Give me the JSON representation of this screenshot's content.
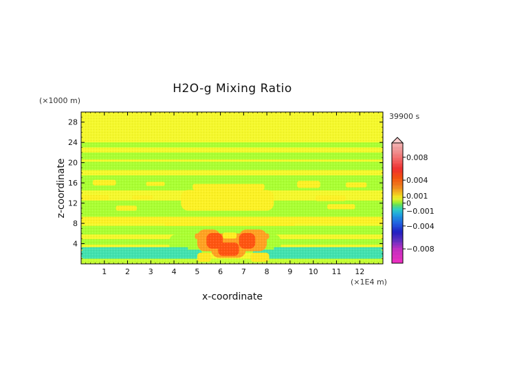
{
  "chart_data": {
    "type": "heatmap",
    "title": "H2O-g Mixing Ratio",
    "xlabel": "x-coordinate",
    "ylabel": "z-coordinate",
    "x_unit": "(×1E4 m)",
    "y_unit": "(×1000 m)",
    "time_label": "39900 s",
    "xlim": [
      0,
      13
    ],
    "ylim": [
      0,
      30
    ],
    "x_ticks": [
      1,
      2,
      3,
      4,
      5,
      6,
      7,
      8,
      9,
      10,
      11,
      12
    ],
    "y_ticks": [
      4,
      8,
      12,
      16,
      20,
      24,
      28
    ],
    "colorbar": {
      "range": [
        -0.0105,
        0.0105
      ],
      "tick_values": [
        0.008,
        0.004,
        0.001,
        0,
        -0.001,
        -0.004,
        -0.008
      ],
      "tick_labels": [
        "0.008",
        "0.004",
        "0.001",
        "0",
        "−0.001",
        "−0.004",
        "−0.008"
      ],
      "stops": [
        {
          "v": -0.0105,
          "color": "#ff33cc"
        },
        {
          "v": -0.008,
          "color": "#cc33cc"
        },
        {
          "v": -0.0065,
          "color": "#6633cc"
        },
        {
          "v": -0.005,
          "color": "#2222cc"
        },
        {
          "v": -0.0035,
          "color": "#2266ee"
        },
        {
          "v": -0.002,
          "color": "#22aaee"
        },
        {
          "v": -0.001,
          "color": "#33ddcc"
        },
        {
          "v": -0.0003,
          "color": "#66ee66"
        },
        {
          "v": 0.0002,
          "color": "#aaff33"
        },
        {
          "v": 0.0007,
          "color": "#eeff33"
        },
        {
          "v": 0.0012,
          "color": "#ffee22"
        },
        {
          "v": 0.002,
          "color": "#ffbb22"
        },
        {
          "v": 0.003,
          "color": "#ff8822"
        },
        {
          "v": 0.0045,
          "color": "#ff5511"
        },
        {
          "v": 0.006,
          "color": "#ff3333"
        },
        {
          "v": 0.0075,
          "color": "#ff6666"
        },
        {
          "v": 0.009,
          "color": "#ff9999"
        },
        {
          "v": 0.0105,
          "color": "#ffbbbb"
        }
      ]
    },
    "field_layers": [
      {
        "name": "background",
        "level": 0.0009,
        "rects": [
          [
            0,
            0,
            13,
            30
          ]
        ]
      },
      {
        "name": "green-band",
        "level": 0.0002,
        "rects": [
          [
            0,
            23,
            13,
            24
          ],
          [
            0,
            20.6,
            13,
            22
          ],
          [
            0,
            18.5,
            13,
            20.2
          ],
          [
            0,
            14.5,
            13,
            17.5
          ],
          [
            0,
            9.3,
            13,
            12.5
          ],
          [
            0,
            5.8,
            13,
            7.5
          ],
          [
            0,
            3.8,
            13,
            4.9
          ]
        ]
      },
      {
        "name": "thin-yellow",
        "level": 0.0009,
        "rects": [
          [
            0,
            20.2,
            13,
            20.6
          ],
          [
            0,
            17.5,
            13,
            18.5
          ]
        ]
      },
      {
        "name": "yellow-blobs",
        "level": 0.0011,
        "rects": [
          [
            0.5,
            15.5,
            1.5,
            16.6
          ],
          [
            2.8,
            15.4,
            3.6,
            16.2
          ],
          [
            4.8,
            14.6,
            7.9,
            15.8
          ],
          [
            9.3,
            15.0,
            10.3,
            16.4
          ],
          [
            11.4,
            15.1,
            12.3,
            16.1
          ],
          [
            0,
            12.6,
            1.2,
            13.6
          ],
          [
            2.2,
            12.8,
            3.1,
            13.5
          ],
          [
            4.3,
            10.5,
            8.3,
            14.6
          ],
          [
            10.1,
            12.4,
            11.4,
            13.5
          ],
          [
            1.5,
            10.5,
            2.4,
            11.5
          ],
          [
            10.6,
            10.8,
            11.8,
            11.8
          ],
          [
            0,
            8.0,
            13,
            9.3
          ],
          [
            3.6,
            7.5,
            9.2,
            8.0
          ]
        ]
      },
      {
        "name": "green-under-plume",
        "level": 0.0002,
        "rects": [
          [
            3.8,
            2.2,
            8.6,
            5.8
          ]
        ]
      },
      {
        "name": "cyan-layer",
        "level": -0.0008,
        "rects": [
          [
            0,
            1.0,
            5.2,
            2.8
          ],
          [
            7.4,
            1.0,
            13,
            2.8
          ],
          [
            0,
            2.8,
            4.6,
            3.3
          ],
          [
            8.3,
            2.8,
            13,
            3.3
          ]
        ]
      },
      {
        "name": "surface-band",
        "level": 0.0004,
        "rects": [
          [
            0,
            0,
            13,
            1.0
          ]
        ]
      },
      {
        "name": "plume-outer",
        "level": 0.0025,
        "rects": [
          [
            5.0,
            2.5,
            6.0,
            6.8
          ],
          [
            6.8,
            2.5,
            8.0,
            6.8
          ],
          [
            5.6,
            1.2,
            7.1,
            5.8
          ],
          [
            4.9,
            4.9,
            8.1,
            6.0
          ]
        ]
      },
      {
        "name": "plume-inner",
        "level": 0.0045,
        "rects": [
          [
            5.4,
            3.0,
            6.1,
            6.1
          ],
          [
            6.8,
            3.0,
            7.5,
            6.1
          ],
          [
            5.9,
            1.6,
            6.8,
            4.2
          ]
        ]
      },
      {
        "name": "plume-notch",
        "level": 0.0012,
        "rects": [
          [
            6.1,
            5.0,
            6.7,
            6.2
          ]
        ]
      },
      {
        "name": "plume-bottom",
        "level": 0.0013,
        "rects": [
          [
            5.0,
            0.4,
            5.6,
            2.2
          ],
          [
            7.3,
            0.4,
            8.1,
            2.2
          ]
        ]
      }
    ]
  }
}
